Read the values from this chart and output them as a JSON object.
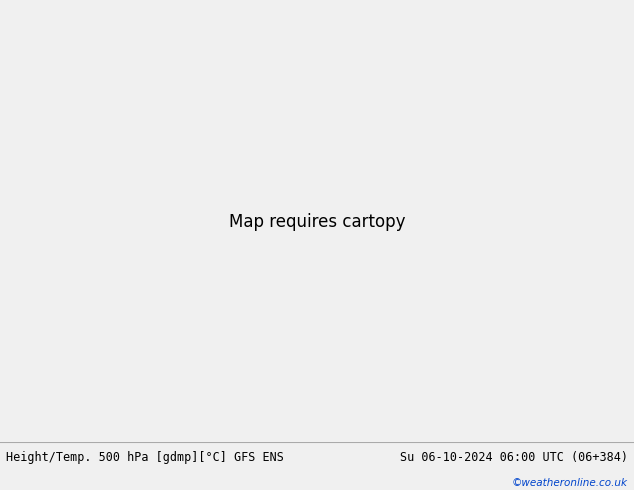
{
  "title_left": "Height/Temp. 500 hPa [gdmp][°C] GFS ENS",
  "title_right": "Su 06-10-2024 06:00 UTC (06+384)",
  "watermark": "©weatheronline.co.uk",
  "bg_color": "#f0f0f0",
  "land_color": "#c8e8a0",
  "ocean_color": "#d8d8d8",
  "border_color": "#888888",
  "coast_color": "#888888",
  "black_color": "#000000",
  "orange_color": "#e87820",
  "cyan_color": "#00b8b8",
  "ygreen_color": "#90c020",
  "figsize": [
    6.34,
    4.9
  ],
  "dpi": 100,
  "bottom_bar_color": "#e8e8e8",
  "title_fontsize": 8.5,
  "watermark_color": "#0044cc",
  "watermark_fontsize": 7.5,
  "map_extent": [
    -35,
    45,
    30,
    75
  ],
  "proj_lat": 52,
  "proj_lon": 5
}
